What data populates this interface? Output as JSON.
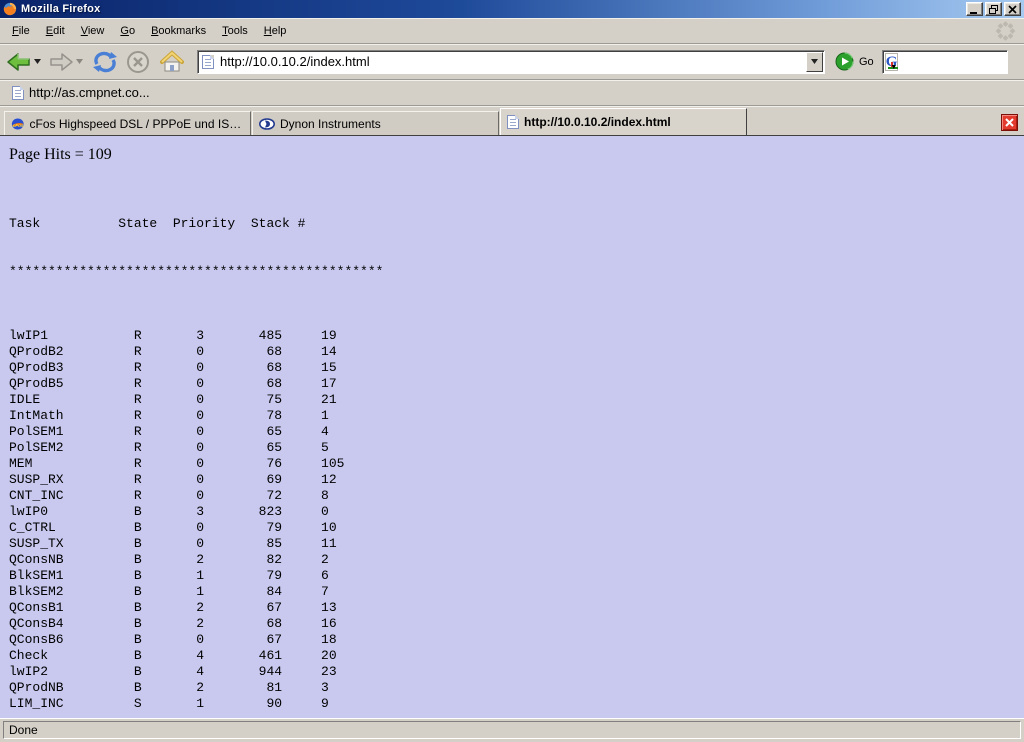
{
  "window": {
    "title": "Mozilla Firefox",
    "controls": {
      "minimize": "minimize",
      "restore": "restore",
      "close": "close"
    }
  },
  "menubar": {
    "items": [
      {
        "label": "File"
      },
      {
        "label": "Edit"
      },
      {
        "label": "View"
      },
      {
        "label": "Go"
      },
      {
        "label": "Bookmarks"
      },
      {
        "label": "Tools"
      },
      {
        "label": "Help"
      }
    ]
  },
  "navbar": {
    "url": {
      "value": "http://10.0.10.2/index.html"
    },
    "go_label": "Go",
    "search": {
      "value": ""
    }
  },
  "bookmarks_bar": {
    "items": [
      {
        "label": "http://as.cmpnet.co..."
      }
    ]
  },
  "tabbar": {
    "tabs": [
      {
        "label": "cFos Highspeed DSL / PPPoE und ISDN CAP...",
        "icon": "cfos-icon",
        "active": false
      },
      {
        "label": "Dynon Instruments",
        "icon": "dynon-icon",
        "active": false
      },
      {
        "label": "http://10.0.10.2/index.html",
        "icon": "page-icon",
        "active": true
      }
    ]
  },
  "page": {
    "hits_line": "Page Hits = 109",
    "table": {
      "header": "Task          State  Priority  Stack #",
      "separator": "************************************************",
      "columns": [
        "Task",
        "State",
        "Priority",
        "Stack",
        "#"
      ],
      "rows": [
        {
          "task": "lwIP1",
          "state": "R",
          "priority": 3,
          "stack": 485,
          "number": 19
        },
        {
          "task": "QProdB2",
          "state": "R",
          "priority": 0,
          "stack": 68,
          "number": 14
        },
        {
          "task": "QProdB3",
          "state": "R",
          "priority": 0,
          "stack": 68,
          "number": 15
        },
        {
          "task": "QProdB5",
          "state": "R",
          "priority": 0,
          "stack": 68,
          "number": 17
        },
        {
          "task": "IDLE",
          "state": "R",
          "priority": 0,
          "stack": 75,
          "number": 21
        },
        {
          "task": "IntMath",
          "state": "R",
          "priority": 0,
          "stack": 78,
          "number": 1
        },
        {
          "task": "PolSEM1",
          "state": "R",
          "priority": 0,
          "stack": 65,
          "number": 4
        },
        {
          "task": "PolSEM2",
          "state": "R",
          "priority": 0,
          "stack": 65,
          "number": 5
        },
        {
          "task": "MEM",
          "state": "R",
          "priority": 0,
          "stack": 76,
          "number": 105
        },
        {
          "task": "SUSP_RX",
          "state": "R",
          "priority": 0,
          "stack": 69,
          "number": 12
        },
        {
          "task": "CNT_INC",
          "state": "R",
          "priority": 0,
          "stack": 72,
          "number": 8
        },
        {
          "task": "lwIP0",
          "state": "B",
          "priority": 3,
          "stack": 823,
          "number": 0
        },
        {
          "task": "C_CTRL",
          "state": "B",
          "priority": 0,
          "stack": 79,
          "number": 10
        },
        {
          "task": "SUSP_TX",
          "state": "B",
          "priority": 0,
          "stack": 85,
          "number": 11
        },
        {
          "task": "QConsNB",
          "state": "B",
          "priority": 2,
          "stack": 82,
          "number": 2
        },
        {
          "task": "BlkSEM1",
          "state": "B",
          "priority": 1,
          "stack": 79,
          "number": 6
        },
        {
          "task": "BlkSEM2",
          "state": "B",
          "priority": 1,
          "stack": 84,
          "number": 7
        },
        {
          "task": "QConsB1",
          "state": "B",
          "priority": 2,
          "stack": 67,
          "number": 13
        },
        {
          "task": "QConsB4",
          "state": "B",
          "priority": 2,
          "stack": 68,
          "number": 16
        },
        {
          "task": "QConsB6",
          "state": "B",
          "priority": 0,
          "stack": 67,
          "number": 18
        },
        {
          "task": "Check",
          "state": "B",
          "priority": 4,
          "stack": 461,
          "number": 20
        },
        {
          "task": "lwIP2",
          "state": "B",
          "priority": 4,
          "stack": 944,
          "number": 23
        },
        {
          "task": "QProdNB",
          "state": "B",
          "priority": 2,
          "stack": 81,
          "number": 3
        },
        {
          "task": "LIM_INC",
          "state": "S",
          "priority": 1,
          "stack": 90,
          "number": 9
        }
      ]
    }
  },
  "statusbar": {
    "text": "Done"
  },
  "colors": {
    "page_bg": "#c9c9f0",
    "titlebar_left": "#0a246a",
    "titlebar_right": "#a6caf0",
    "chrome_bg": "#d4d0c8",
    "close_tab_red": "#e23b2e",
    "back_arrow_green": "#6fbf3f",
    "go_button_green": "#2ca02c",
    "reload_blue": "#4a7fd6"
  }
}
